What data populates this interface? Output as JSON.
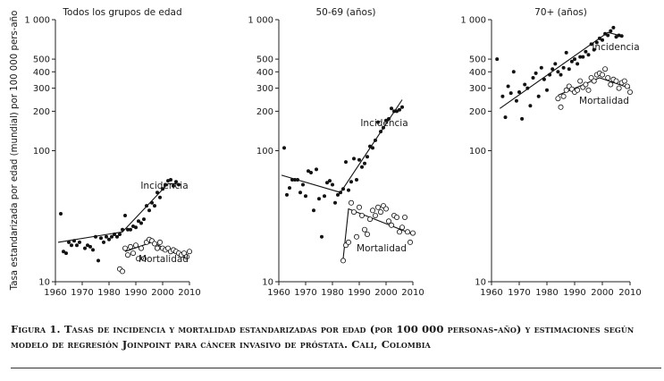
{
  "figure": {
    "y_axis_label": "Tasa estandarizada por edad (mundial) por 100 000 pers-año",
    "caption": "Figura 1. Tasas de incidencia y mortalidad estandarizadas por edad (por 100 000 personas-año) y estimaciones según modelo de regresión Joinpoint para cáncer invasivo de próstata. Cali, Colombia"
  },
  "chart_data": [
    {
      "type": "scatter",
      "title": "Todos los grupos de edad",
      "xlabel": "",
      "ylabel": "Tasa estandarizada por edad (mundial) por 100 000 pers-año",
      "yscale": "log",
      "xlim": [
        1960,
        2010
      ],
      "ylim": [
        10,
        1000
      ],
      "x_ticks": [
        1960,
        1970,
        1980,
        1990,
        2000,
        2010
      ],
      "y_ticks": [
        10,
        100,
        200,
        300,
        400,
        500,
        1000
      ],
      "y_tick_labels": [
        "10",
        "100",
        "200",
        "300",
        "400",
        "500",
        "1 000"
      ],
      "grid": false,
      "series": [
        {
          "name": "Incidencia",
          "marker": "filled",
          "points": [
            [
              1962,
              33
            ],
            [
              1963,
              17
            ],
            [
              1964,
              16.5
            ],
            [
              1965,
              20
            ],
            [
              1966,
              19
            ],
            [
              1967,
              20.5
            ],
            [
              1968,
              19
            ],
            [
              1969,
              20
            ],
            [
              1971,
              18
            ],
            [
              1972,
              19
            ],
            [
              1973,
              18.5
            ],
            [
              1974,
              17.5
            ],
            [
              1975,
              22
            ],
            [
              1976,
              14.5
            ],
            [
              1977,
              21.5
            ],
            [
              1978,
              20
            ],
            [
              1979,
              22
            ],
            [
              1980,
              21
            ],
            [
              1981,
              22
            ],
            [
              1982,
              23
            ],
            [
              1983,
              22
            ],
            [
              1984,
              23
            ],
            [
              1985,
              25
            ],
            [
              1986,
              32
            ],
            [
              1987,
              25
            ],
            [
              1988,
              25
            ],
            [
              1989,
              26.5
            ],
            [
              1990,
              26
            ],
            [
              1991,
              29
            ],
            [
              1992,
              28
            ],
            [
              1993,
              30
            ],
            [
              1994,
              38
            ],
            [
              1995,
              35
            ],
            [
              1996,
              40
            ],
            [
              1997,
              38
            ],
            [
              1998,
              48
            ],
            [
              1999,
              44
            ],
            [
              2000,
              51
            ],
            [
              2001,
              55
            ],
            [
              2002,
              59
            ],
            [
              2003,
              60
            ],
            [
              2004,
              54
            ],
            [
              2005,
              58
            ],
            [
              2006,
              55
            ]
          ],
          "trend": [
            [
              1961,
              20
            ],
            [
              1985,
              24
            ],
            [
              2002,
              56
            ],
            [
              2005,
              56
            ]
          ]
        },
        {
          "name": "Mortalidad",
          "marker": "open",
          "points": [
            [
              1984,
              12.5
            ],
            [
              1985,
              12
            ],
            [
              1986,
              18
            ],
            [
              1987,
              16
            ],
            [
              1988,
              18.5
            ],
            [
              1989,
              16.5
            ],
            [
              1990,
              19
            ],
            [
              1991,
              15
            ],
            [
              1992,
              18
            ],
            [
              1993,
              15
            ],
            [
              1994,
              20
            ],
            [
              1995,
              21
            ],
            [
              1996,
              20.5
            ],
            [
              1997,
              19.5
            ],
            [
              1998,
              18
            ],
            [
              1999,
              20
            ],
            [
              2000,
              18
            ],
            [
              2001,
              17.5
            ],
            [
              2002,
              18
            ],
            [
              2003,
              17
            ],
            [
              2004,
              17.5
            ],
            [
              2005,
              17
            ],
            [
              2006,
              16.5
            ],
            [
              2007,
              16
            ],
            [
              2008,
              16.5
            ],
            [
              2009,
              15.5
            ],
            [
              2010,
              17
            ]
          ],
          "trend": [
            [
              1986,
              17
            ],
            [
              1996,
              20
            ],
            [
              2009,
              15
            ]
          ]
        }
      ]
    },
    {
      "type": "scatter",
      "title": "50-69 (años)",
      "xlabel": "",
      "ylabel": "",
      "yscale": "log",
      "xlim": [
        1960,
        2010
      ],
      "ylim": [
        10,
        1000
      ],
      "x_ticks": [
        1960,
        1970,
        1980,
        1990,
        2000,
        2010
      ],
      "y_ticks": [
        10,
        100,
        200,
        300,
        400,
        500,
        1000
      ],
      "y_tick_labels": [
        "10",
        "100",
        "200",
        "300",
        "400",
        "500",
        "1 000"
      ],
      "grid": false,
      "series": [
        {
          "name": "Incidencia",
          "marker": "filled",
          "points": [
            [
              1962,
              105
            ],
            [
              1963,
              46
            ],
            [
              1964,
              52
            ],
            [
              1965,
              60
            ],
            [
              1966,
              60
            ],
            [
              1967,
              60
            ],
            [
              1968,
              48
            ],
            [
              1969,
              55
            ],
            [
              1970,
              45
            ],
            [
              1971,
              70
            ],
            [
              1972,
              68
            ],
            [
              1973,
              35
            ],
            [
              1974,
              72
            ],
            [
              1975,
              43
            ],
            [
              1976,
              22
            ],
            [
              1977,
              45
            ],
            [
              1978,
              57
            ],
            [
              1979,
              59
            ],
            [
              1980,
              55
            ],
            [
              1981,
              40
            ],
            [
              1982,
              46
            ],
            [
              1983,
              48
            ],
            [
              1984,
              51
            ],
            [
              1985,
              82
            ],
            [
              1986,
              50
            ],
            [
              1987,
              58
            ],
            [
              1988,
              87
            ],
            [
              1989,
              60
            ],
            [
              1990,
              85
            ],
            [
              1991,
              75
            ],
            [
              1992,
              80
            ],
            [
              1993,
              90
            ],
            [
              1994,
              108
            ],
            [
              1995,
              105
            ],
            [
              1996,
              120
            ],
            [
              1997,
              165
            ],
            [
              1998,
              140
            ],
            [
              1999,
              150
            ],
            [
              2000,
              170
            ],
            [
              2001,
              175
            ],
            [
              2002,
              210
            ],
            [
              2003,
              200
            ],
            [
              2004,
              200
            ],
            [
              2005,
              205
            ],
            [
              2006,
              215
            ]
          ],
          "trend": [
            [
              1961,
              65
            ],
            [
              1983,
              48
            ],
            [
              2006,
              245
            ]
          ]
        },
        {
          "name": "Mortalidad",
          "marker": "open",
          "points": [
            [
              1984,
              14.5
            ],
            [
              1985,
              19
            ],
            [
              1986,
              20
            ],
            [
              1987,
              40
            ],
            [
              1988,
              34
            ],
            [
              1989,
              22
            ],
            [
              1990,
              37
            ],
            [
              1991,
              32
            ],
            [
              1992,
              25
            ],
            [
              1993,
              23
            ],
            [
              1994,
              30
            ],
            [
              1995,
              35
            ],
            [
              1996,
              32
            ],
            [
              1997,
              37
            ],
            [
              1998,
              34
            ],
            [
              1999,
              38
            ],
            [
              2000,
              36
            ],
            [
              2001,
              29
            ],
            [
              2002,
              27
            ],
            [
              2003,
              32
            ],
            [
              2004,
              31
            ],
            [
              2005,
              24
            ],
            [
              2006,
              26
            ],
            [
              2007,
              31
            ],
            [
              2008,
              24
            ],
            [
              2009,
              20
            ],
            [
              2010,
              23.5
            ]
          ],
          "trend": [
            [
              1984,
              15
            ],
            [
              1986,
              36
            ],
            [
              2010,
              23
            ]
          ]
        }
      ]
    },
    {
      "type": "scatter",
      "title": "70+ (años)",
      "xlabel": "",
      "ylabel": "",
      "yscale": "log",
      "xlim": [
        1960,
        2010
      ],
      "ylim": [
        10,
        1000
      ],
      "x_ticks": [
        1960,
        1970,
        1980,
        1990,
        2000,
        2010
      ],
      "y_ticks": [
        10,
        100,
        200,
        300,
        400,
        500,
        1000
      ],
      "y_tick_labels": [
        "10",
        "100",
        "200",
        "300",
        "400",
        "500",
        "1 000"
      ],
      "grid": false,
      "series": [
        {
          "name": "Incidencia",
          "marker": "filled",
          "points": [
            [
              1962,
              500
            ],
            [
              1964,
              260
            ],
            [
              1965,
              180
            ],
            [
              1966,
              310
            ],
            [
              1967,
              275
            ],
            [
              1968,
              400
            ],
            [
              1969,
              240
            ],
            [
              1970,
              280
            ],
            [
              1971,
              175
            ],
            [
              1972,
              320
            ],
            [
              1973,
              300
            ],
            [
              1974,
              220
            ],
            [
              1975,
              360
            ],
            [
              1976,
              390
            ],
            [
              1977,
              260
            ],
            [
              1978,
              430
            ],
            [
              1979,
              350
            ],
            [
              1980,
              290
            ],
            [
              1981,
              380
            ],
            [
              1982,
              420
            ],
            [
              1983,
              460
            ],
            [
              1984,
              400
            ],
            [
              1985,
              380
            ],
            [
              1986,
              430
            ],
            [
              1987,
              560
            ],
            [
              1988,
              420
            ],
            [
              1989,
              480
            ],
            [
              1990,
              500
            ],
            [
              1991,
              460
            ],
            [
              1992,
              520
            ],
            [
              1993,
              520
            ],
            [
              1994,
              570
            ],
            [
              1995,
              540
            ],
            [
              1996,
              650
            ],
            [
              1997,
              590
            ],
            [
              1998,
              670
            ],
            [
              1999,
              720
            ],
            [
              2000,
              700
            ],
            [
              2001,
              780
            ],
            [
              2002,
              760
            ],
            [
              2003,
              820
            ],
            [
              2004,
              870
            ],
            [
              2005,
              740
            ],
            [
              2006,
              760
            ],
            [
              2007,
              750
            ]
          ],
          "trend": [
            [
              1963,
              210
            ],
            [
              2002,
              800
            ],
            [
              2007,
              750
            ]
          ]
        },
        {
          "name": "Mortalidad",
          "marker": "open",
          "points": [
            [
              1984,
              250
            ],
            [
              1985,
              215
            ],
            [
              1986,
              260
            ],
            [
              1987,
              290
            ],
            [
              1988,
              310
            ],
            [
              1989,
              295
            ],
            [
              1990,
              280
            ],
            [
              1991,
              290
            ],
            [
              1992,
              340
            ],
            [
              1993,
              305
            ],
            [
              1994,
              320
            ],
            [
              1995,
              290
            ],
            [
              1996,
              360
            ],
            [
              1997,
              340
            ],
            [
              1998,
              380
            ],
            [
              1999,
              390
            ],
            [
              2000,
              380
            ],
            [
              2001,
              420
            ],
            [
              2002,
              360
            ],
            [
              2003,
              320
            ],
            [
              2004,
              350
            ],
            [
              2005,
              340
            ],
            [
              2006,
              300
            ],
            [
              2007,
              330
            ],
            [
              2008,
              340
            ],
            [
              2009,
              310
            ],
            [
              2010,
              280
            ]
          ],
          "trend": [
            [
              1984,
              265
            ],
            [
              1999,
              360
            ],
            [
              2010,
              300
            ]
          ]
        }
      ]
    }
  ]
}
